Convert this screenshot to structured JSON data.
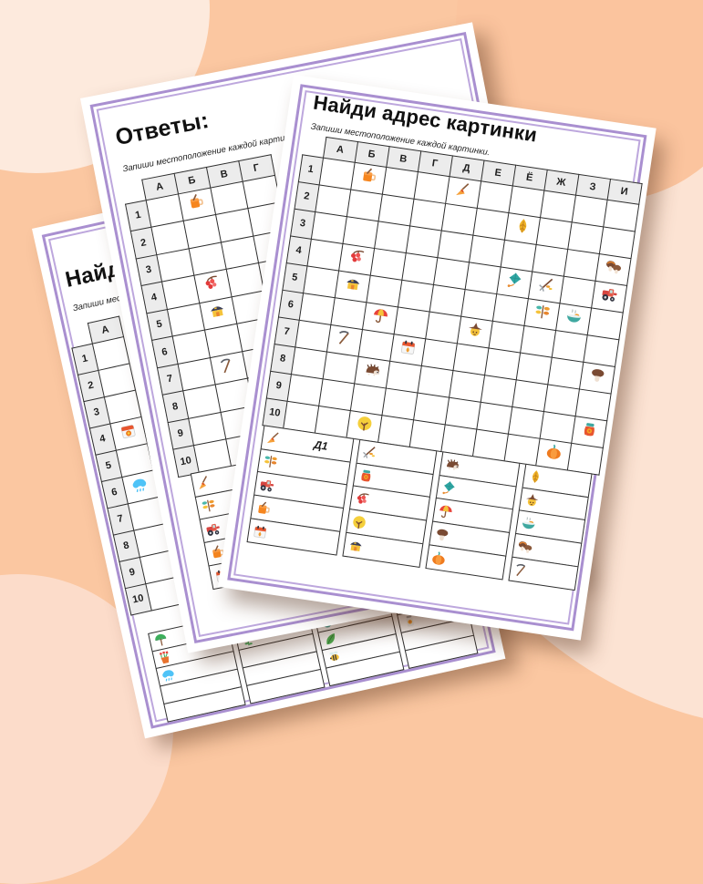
{
  "palette": {
    "background_base": "#fbc7a1",
    "background_blob_light": "#fce3d3",
    "background_blob_lighter": "#fdeadd",
    "background_blob_dark": "#fbc49e",
    "sheet_border_purple": "#a98fd0",
    "grid_line": "#2e2e2e",
    "header_cell_bg": "#ececec"
  },
  "sheets": {
    "front": {
      "title": "Найди адрес картинки",
      "subtitle": "Запиши местоположение каждой картинки.",
      "col_headers": [
        "А",
        "Б",
        "В",
        "Г",
        "Д",
        "Е",
        "Ё",
        "Ж",
        "З",
        "И"
      ],
      "row_headers": [
        "1",
        "2",
        "3",
        "4",
        "5",
        "6",
        "7",
        "8",
        "9",
        "10"
      ],
      "grid_items": [
        {
          "cell": "Б1",
          "icon": "juice-mug"
        },
        {
          "cell": "Д1",
          "icon": "broom"
        },
        {
          "cell": "Ё2",
          "icon": "oak-leaf"
        },
        {
          "cell": "И3",
          "icon": "mushroom-pair"
        },
        {
          "cell": "Б4",
          "icon": "berries"
        },
        {
          "cell": "Ё4",
          "icon": "kite"
        },
        {
          "cell": "Ж4",
          "icon": "rake"
        },
        {
          "cell": "И4",
          "icon": "tractor"
        },
        {
          "cell": "Б5",
          "icon": "house"
        },
        {
          "cell": "Ж5",
          "icon": "autumn-branch"
        },
        {
          "cell": "З5",
          "icon": "soup-bowl"
        },
        {
          "cell": "В6",
          "icon": "umbrella"
        },
        {
          "cell": "Е6",
          "icon": "scarecrow"
        },
        {
          "cell": "Б7",
          "icon": "scythe"
        },
        {
          "cell": "Г7",
          "icon": "calendar-leaf"
        },
        {
          "cell": "И7",
          "icon": "mushroom"
        },
        {
          "cell": "В8",
          "icon": "hedgehog"
        },
        {
          "cell": "И9",
          "icon": "honey-jar"
        },
        {
          "cell": "В10",
          "icon": "moon-tree"
        },
        {
          "cell": "З10",
          "icon": "pumpkin"
        }
      ],
      "answer_columns": [
        {
          "items": [
            {
              "icon": "broom",
              "answer": "Д1"
            },
            {
              "icon": "autumn-branch",
              "answer": ""
            },
            {
              "icon": "tractor",
              "answer": ""
            },
            {
              "icon": "juice-mug",
              "answer": ""
            },
            {
              "icon": "calendar-leaf",
              "answer": ""
            }
          ]
        },
        {
          "items": [
            {
              "icon": "rake",
              "answer": ""
            },
            {
              "icon": "honey-jar",
              "answer": ""
            },
            {
              "icon": "berries",
              "answer": ""
            },
            {
              "icon": "moon-tree",
              "answer": ""
            },
            {
              "icon": "house",
              "answer": ""
            }
          ]
        },
        {
          "items": [
            {
              "icon": "hedgehog",
              "answer": ""
            },
            {
              "icon": "kite",
              "answer": ""
            },
            {
              "icon": "umbrella",
              "answer": ""
            },
            {
              "icon": "mushroom",
              "answer": ""
            },
            {
              "icon": "pumpkin",
              "answer": ""
            }
          ]
        },
        {
          "items": [
            {
              "icon": "oak-leaf",
              "answer": ""
            },
            {
              "icon": "scarecrow",
              "answer": ""
            },
            {
              "icon": "soup-bowl",
              "answer": ""
            },
            {
              "icon": "mushroom-pair",
              "answer": ""
            },
            {
              "icon": "scythe",
              "answer": ""
            }
          ]
        }
      ]
    },
    "answers_sheet": {
      "title": "Ответы:",
      "subtitle": "Запиши местоположение каждой картинки.",
      "col_headers": [
        "А",
        "Б",
        "В",
        "Г"
      ],
      "row_headers": [
        "1",
        "2",
        "3",
        "4",
        "5",
        "6",
        "7",
        "8",
        "9",
        "10"
      ],
      "grid_items": [
        {
          "cell": "Б1",
          "icon": "juice-mug"
        },
        {
          "cell": "Б4",
          "icon": "berries"
        },
        {
          "cell": "Б5",
          "icon": "house"
        },
        {
          "cell": "Б7",
          "icon": "scythe"
        }
      ],
      "answer_columns": [
        {
          "items": [
            {
              "icon": "broom",
              "answer": ""
            },
            {
              "icon": "autumn-branch",
              "answer": ""
            },
            {
              "icon": "tractor",
              "answer": ""
            },
            {
              "icon": "juice-mug",
              "answer": ""
            },
            {
              "icon": "calendar-leaf",
              "answer": ""
            }
          ]
        },
        {
          "items": [
            {
              "icon": "",
              "answer": ""
            },
            {
              "icon": "",
              "answer": ""
            },
            {
              "icon": "",
              "answer": ""
            },
            {
              "icon": "",
              "answer": ""
            },
            {
              "icon": "",
              "answer": ""
            }
          ]
        },
        {
          "items": [
            {
              "icon": "",
              "answer": ""
            },
            {
              "icon": "",
              "answer": ""
            },
            {
              "icon": "",
              "answer": ""
            },
            {
              "icon": "",
              "answer": ""
            },
            {
              "icon": "",
              "answer": ""
            }
          ]
        },
        {
          "items": [
            {
              "icon": "",
              "answer": ""
            },
            {
              "icon": "",
              "answer": ""
            },
            {
              "icon": "",
              "answer": ""
            },
            {
              "icon": "",
              "answer": ""
            },
            {
              "icon": "",
              "answer": ""
            }
          ]
        }
      ]
    },
    "spring_sheet": {
      "title": "Найди",
      "subtitle": "Запиши местопо",
      "col_headers": [
        "А"
      ],
      "row_headers": [
        "1",
        "2",
        "3",
        "4",
        "5",
        "6",
        "7",
        "8",
        "9",
        "10"
      ],
      "grid_items": [
        {
          "cell": "А4",
          "icon": "calendar-flower"
        },
        {
          "cell": "А6",
          "icon": "rain-cloud"
        }
      ],
      "answer_columns": [
        {
          "items": [
            {
              "icon": "green-umbrella",
              "answer": ""
            },
            {
              "icon": "tulip-pot",
              "answer": ""
            },
            {
              "icon": "rain-cloud",
              "answer": ""
            },
            {
              "icon": "",
              "answer": ""
            },
            {
              "icon": "",
              "answer": ""
            }
          ]
        },
        {
          "items": [
            {
              "icon": "birdhouse",
              "answer": ""
            },
            {
              "icon": "sunflower",
              "answer": ""
            },
            {
              "icon": "",
              "answer": ""
            },
            {
              "icon": "",
              "answer": ""
            },
            {
              "icon": "",
              "answer": ""
            }
          ]
        },
        {
          "items": [
            {
              "icon": "cloud-sun",
              "answer": ""
            },
            {
              "icon": "easter-egg",
              "answer": ""
            },
            {
              "icon": "green-leaf",
              "answer": ""
            },
            {
              "icon": "bee",
              "answer": ""
            },
            {
              "icon": "",
              "answer": ""
            }
          ]
        },
        {
          "items": [
            {
              "icon": "tulip-pot",
              "answer": ""
            },
            {
              "icon": "rain-cloud",
              "answer": ""
            },
            {
              "icon": "jar-flower",
              "answer": ""
            },
            {
              "icon": "",
              "answer": ""
            },
            {
              "icon": "",
              "answer": ""
            }
          ]
        }
      ]
    }
  }
}
